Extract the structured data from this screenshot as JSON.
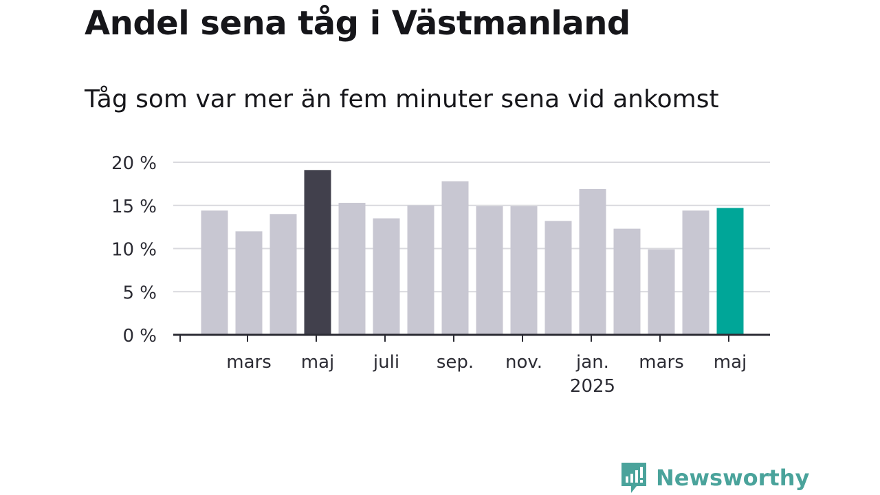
{
  "title": "Andel sena tåg i Västmanland",
  "subtitle": "Tåg som var mer än fem minuter sena vid ankomst",
  "brand": {
    "name": "Newsworthy",
    "color": "#4aa39b"
  },
  "colors": {
    "default": "#c8c7d2",
    "highlight_dark": "#41404c",
    "highlight_accent": "#00a698",
    "grid": "#d9d9de",
    "axis": "#2b2b33"
  },
  "chart_data": {
    "type": "bar",
    "months": [
      "2024-02",
      "2024-03",
      "2024-04",
      "2024-05",
      "2024-06",
      "2024-07",
      "2024-08",
      "2024-09",
      "2024-10",
      "2024-11",
      "2024-12",
      "2025-01",
      "2025-02",
      "2025-03",
      "2025-04",
      "2025-05"
    ],
    "values": [
      14.4,
      12.0,
      14.0,
      19.1,
      15.3,
      13.5,
      15.0,
      17.8,
      14.9,
      14.9,
      13.2,
      16.9,
      12.3,
      9.9,
      14.4,
      14.7
    ],
    "highlight": [
      "",
      "",
      "",
      "dark",
      "",
      "",
      "",
      "",
      "",
      "",
      "",
      "",
      "",
      "",
      "",
      "accent"
    ],
    "ylim": [
      0,
      20
    ],
    "yticks": [
      "0 %",
      "5 %",
      "10 %",
      "15 %",
      "20 %"
    ],
    "ytick_values": [
      0,
      5,
      10,
      15,
      20
    ],
    "xtick_labels": [
      {
        "month": "2024-03",
        "label": "mars",
        "year": ""
      },
      {
        "month": "2024-05",
        "label": "maj",
        "year": ""
      },
      {
        "month": "2024-07",
        "label": "juli",
        "year": ""
      },
      {
        "month": "2024-09",
        "label": "sep.",
        "year": ""
      },
      {
        "month": "2024-11",
        "label": "nov.",
        "year": ""
      },
      {
        "month": "2025-01",
        "label": "jan.",
        "year": "2025"
      },
      {
        "month": "2025-03",
        "label": "mars",
        "year": ""
      },
      {
        "month": "2025-05",
        "label": "maj",
        "year": ""
      }
    ],
    "grid": true,
    "legend": "none"
  }
}
